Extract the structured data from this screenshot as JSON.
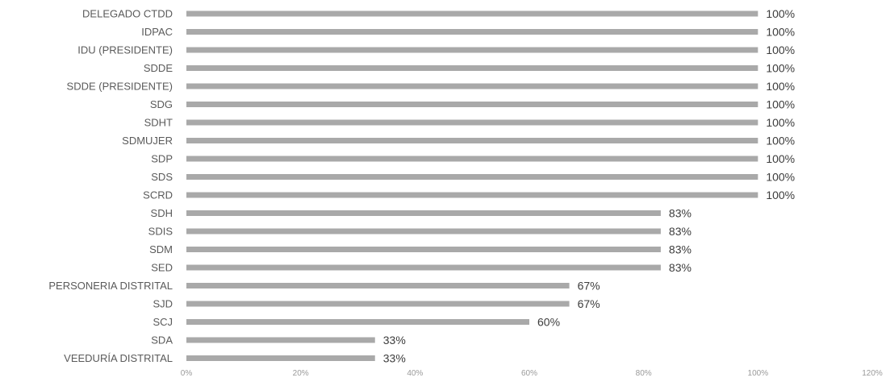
{
  "chart_data": {
    "type": "bar",
    "orientation": "horizontal",
    "categories": [
      "DELEGADO CTDD",
      "IDPAC",
      "IDU (PRESIDENTE)",
      "SDDE",
      "SDDE (PRESIDENTE)",
      "SDG",
      "SDHT",
      "SDMUJER",
      "SDP",
      "SDS",
      "SCRD",
      "SDH",
      "SDIS",
      "SDM",
      "SED",
      "PERSONERIA DISTRITAL",
      "SJD",
      "SCJ",
      "SDA",
      "VEEDURÍA DISTRITAL"
    ],
    "values": [
      100,
      100,
      100,
      100,
      100,
      100,
      100,
      100,
      100,
      100,
      100,
      83,
      83,
      83,
      83,
      67,
      67,
      60,
      33,
      33
    ],
    "value_labels": [
      "100%",
      "100%",
      "100%",
      "100%",
      "100%",
      "100%",
      "100%",
      "100%",
      "100%",
      "100%",
      "100%",
      "83%",
      "83%",
      "83%",
      "83%",
      "67%",
      "67%",
      "60%",
      "33%",
      "33%"
    ],
    "xlim": [
      0,
      120
    ],
    "x_ticks": [
      "0%",
      "20%",
      "40%",
      "60%",
      "80%",
      "100%",
      "120%"
    ],
    "grid": false,
    "legend": "none",
    "bar_color": "#a9a9a9"
  }
}
